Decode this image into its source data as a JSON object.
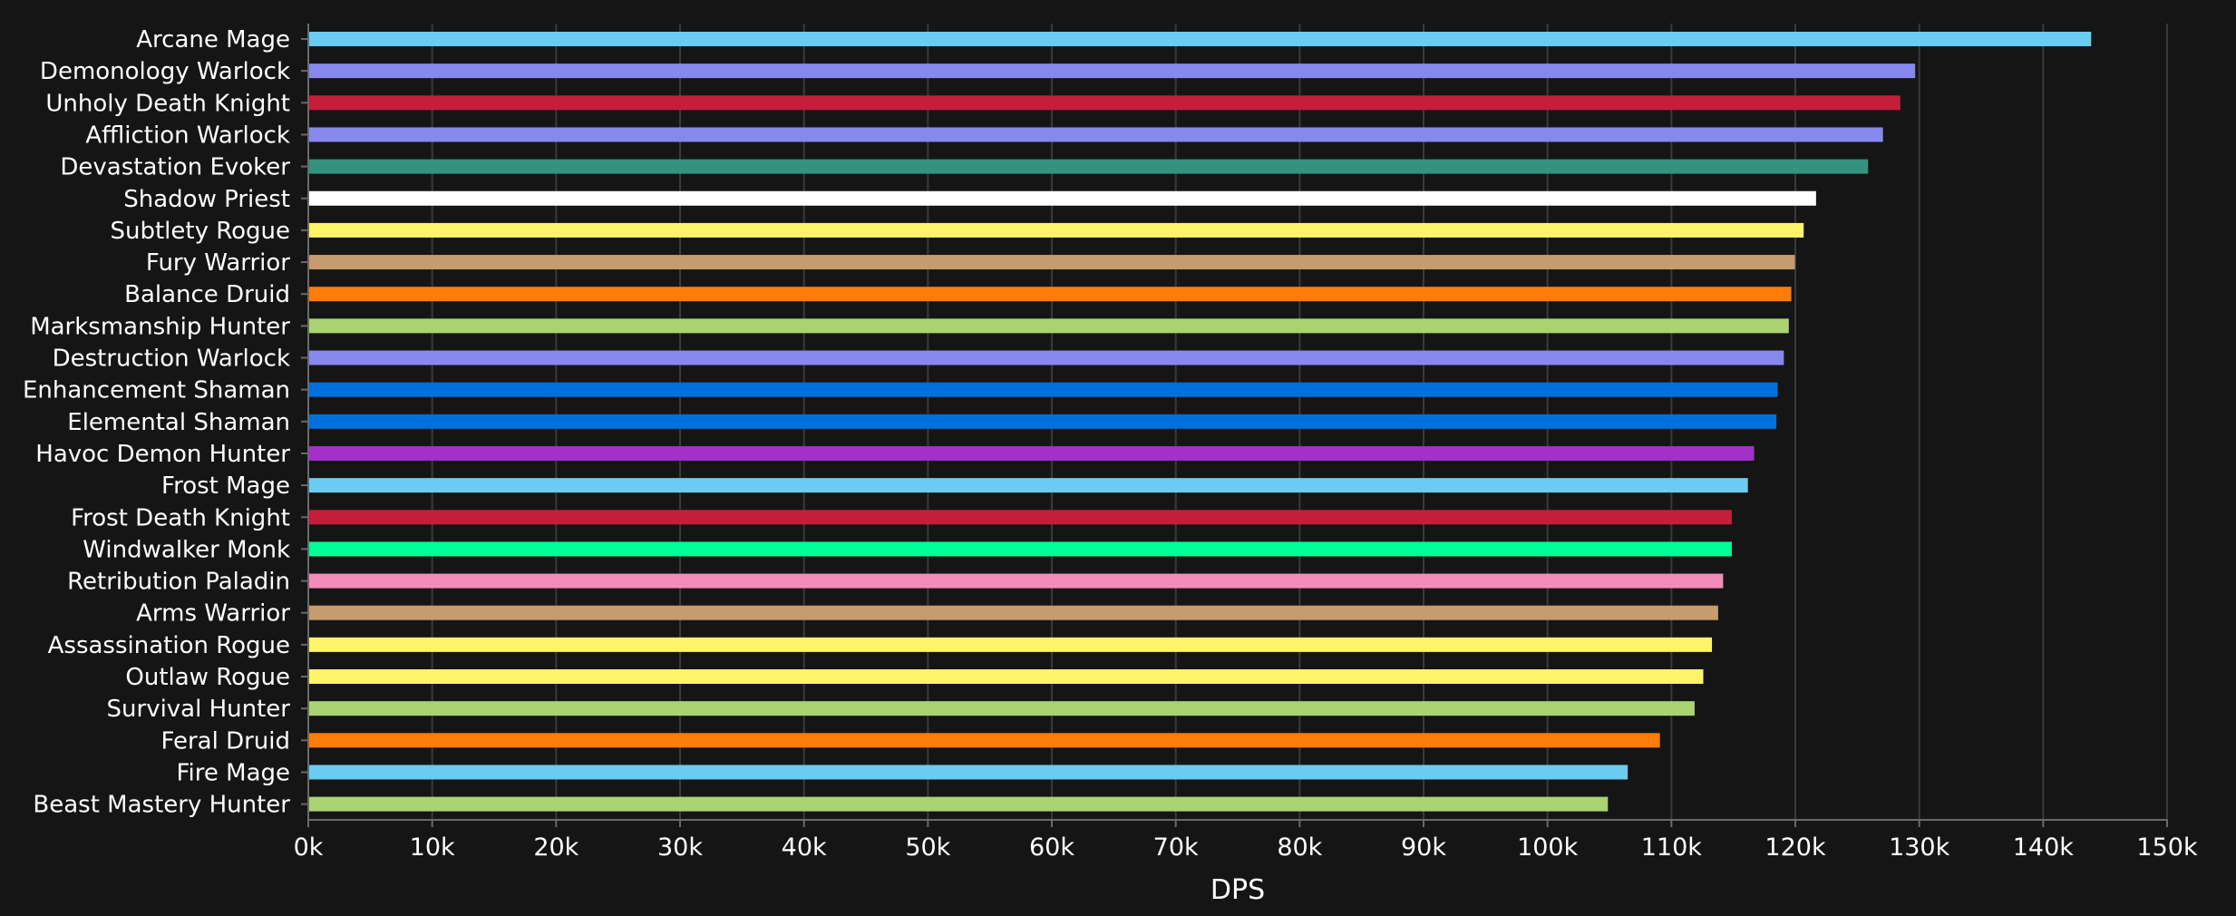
{
  "chart_data": {
    "type": "bar",
    "orientation": "horizontal",
    "xlabel": "DPS",
    "ylabel": "",
    "xlim": [
      0,
      150000
    ],
    "xticks": [
      0,
      10000,
      20000,
      30000,
      40000,
      50000,
      60000,
      70000,
      80000,
      90000,
      100000,
      110000,
      120000,
      130000,
      140000,
      150000
    ],
    "xtick_labels": [
      "0k",
      "10k",
      "20k",
      "30k",
      "40k",
      "50k",
      "60k",
      "70k",
      "80k",
      "90k",
      "100k",
      "110k",
      "120k",
      "130k",
      "140k",
      "150k"
    ],
    "grid": true,
    "legend": "none",
    "categories": [
      "Arcane Mage",
      "Demonology Warlock",
      "Unholy Death Knight",
      "Affliction Warlock",
      "Devastation Evoker",
      "Shadow Priest",
      "Subtlety Rogue",
      "Fury Warrior",
      "Balance Druid",
      "Marksmanship Hunter",
      "Destruction Warlock",
      "Enhancement Shaman",
      "Elemental Shaman",
      "Havoc Demon Hunter",
      "Frost Mage",
      "Frost Death Knight",
      "Windwalker Monk",
      "Retribution Paladin",
      "Arms Warrior",
      "Assassination Rogue",
      "Outlaw Rogue",
      "Survival Hunter",
      "Feral Druid",
      "Fire Mage",
      "Beast Mastery Hunter"
    ],
    "values": [
      143800,
      129600,
      128400,
      127000,
      125800,
      121600,
      120600,
      119900,
      119600,
      119400,
      119000,
      118500,
      118400,
      116600,
      116100,
      114800,
      114800,
      114100,
      113700,
      113200,
      112500,
      111800,
      109000,
      106400,
      104800
    ],
    "colors": [
      "#69ccf0",
      "#8788ee",
      "#c41e3a",
      "#8788ee",
      "#33937f",
      "#ffffff",
      "#fff468",
      "#c69b6d",
      "#ff7c0a",
      "#aad372",
      "#8788ee",
      "#0070dd",
      "#0070dd",
      "#a330c9",
      "#69ccf0",
      "#c41e3a",
      "#00ff98",
      "#f48cba",
      "#c69b6d",
      "#fff468",
      "#fff468",
      "#aad372",
      "#ff7c0a",
      "#69ccf0",
      "#aad372"
    ]
  }
}
